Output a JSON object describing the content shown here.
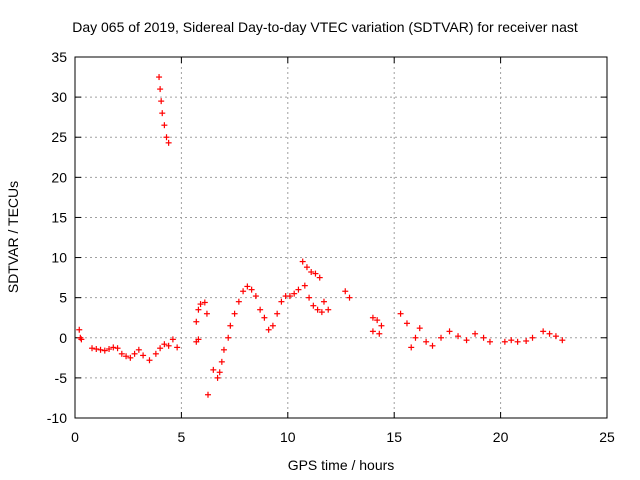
{
  "chart_data": {
    "type": "scatter",
    "title": "Day 065 of 2019, Sidereal Day-to-day VTEC variation (SDTVAR) for receiver nast",
    "xlabel": "GPS time / hours",
    "ylabel": "SDTVAR / TECUs",
    "xlim": [
      0,
      25
    ],
    "ylim": [
      -10,
      35
    ],
    "xticks": [
      0,
      5,
      10,
      15,
      20,
      25
    ],
    "yticks": [
      -10,
      -5,
      0,
      5,
      10,
      15,
      20,
      25,
      30,
      35
    ],
    "grid": true,
    "marker": "plus",
    "color": "#ff0000",
    "series": [
      {
        "name": "SDTVAR",
        "points": [
          [
            0.2,
            1.0
          ],
          [
            0.25,
            0.0
          ],
          [
            0.3,
            -0.2
          ],
          [
            0.8,
            -1.3
          ],
          [
            1.0,
            -1.4
          ],
          [
            1.2,
            -1.5
          ],
          [
            1.4,
            -1.6
          ],
          [
            1.6,
            -1.4
          ],
          [
            1.8,
            -1.2
          ],
          [
            2.0,
            -1.3
          ],
          [
            2.2,
            -2.0
          ],
          [
            2.4,
            -2.3
          ],
          [
            2.6,
            -2.5
          ],
          [
            2.8,
            -2.0
          ],
          [
            3.0,
            -1.5
          ],
          [
            3.2,
            -2.2
          ],
          [
            3.5,
            -2.8
          ],
          [
            3.8,
            -2.0
          ],
          [
            4.0,
            -1.3
          ],
          [
            4.2,
            -0.8
          ],
          [
            4.4,
            -1.0
          ],
          [
            4.6,
            -0.2
          ],
          [
            4.8,
            -1.2
          ],
          [
            3.95,
            32.5
          ],
          [
            4.0,
            31.0
          ],
          [
            4.05,
            29.5
          ],
          [
            4.1,
            28.0
          ],
          [
            4.2,
            26.5
          ],
          [
            4.3,
            25.0
          ],
          [
            4.4,
            24.3
          ],
          [
            5.7,
            2.0
          ],
          [
            5.8,
            3.5
          ],
          [
            5.9,
            4.2
          ],
          [
            6.1,
            4.4
          ],
          [
            6.2,
            3.0
          ],
          [
            5.7,
            -0.5
          ],
          [
            5.8,
            -0.2
          ],
          [
            6.25,
            -7.1
          ],
          [
            6.5,
            -4.0
          ],
          [
            6.7,
            -5.0
          ],
          [
            6.8,
            -4.3
          ],
          [
            6.9,
            -3.0
          ],
          [
            7.0,
            -1.5
          ],
          [
            7.2,
            0.0
          ],
          [
            7.3,
            1.5
          ],
          [
            7.5,
            3.0
          ],
          [
            7.7,
            4.5
          ],
          [
            7.9,
            5.8
          ],
          [
            8.1,
            6.4
          ],
          [
            8.3,
            6.0
          ],
          [
            8.5,
            5.2
          ],
          [
            8.7,
            3.5
          ],
          [
            8.9,
            2.5
          ],
          [
            9.1,
            1.0
          ],
          [
            9.3,
            1.5
          ],
          [
            9.5,
            3.0
          ],
          [
            9.7,
            4.5
          ],
          [
            9.9,
            5.2
          ],
          [
            10.1,
            5.2
          ],
          [
            10.3,
            5.5
          ],
          [
            10.5,
            6.0
          ],
          [
            10.7,
            9.5
          ],
          [
            10.9,
            8.8
          ],
          [
            11.1,
            8.2
          ],
          [
            11.3,
            8.0
          ],
          [
            11.5,
            7.5
          ],
          [
            10.8,
            6.5
          ],
          [
            11.0,
            5.0
          ],
          [
            11.2,
            4.0
          ],
          [
            11.4,
            3.5
          ],
          [
            11.6,
            3.2
          ],
          [
            11.7,
            4.5
          ],
          [
            11.9,
            3.5
          ],
          [
            12.7,
            5.8
          ],
          [
            12.9,
            5.0
          ],
          [
            14.0,
            2.5
          ],
          [
            14.2,
            2.2
          ],
          [
            14.4,
            1.5
          ],
          [
            14.0,
            0.8
          ],
          [
            14.3,
            0.5
          ],
          [
            15.3,
            3.0
          ],
          [
            15.6,
            1.8
          ],
          [
            15.8,
            -1.2
          ],
          [
            16.0,
            0.0
          ],
          [
            16.2,
            1.2
          ],
          [
            16.5,
            -0.5
          ],
          [
            16.8,
            -1.0
          ],
          [
            17.2,
            0.0
          ],
          [
            17.6,
            0.8
          ],
          [
            18.0,
            0.2
          ],
          [
            18.4,
            -0.3
          ],
          [
            18.8,
            0.5
          ],
          [
            19.2,
            0.0
          ],
          [
            19.5,
            -0.5
          ],
          [
            20.2,
            -0.5
          ],
          [
            20.5,
            -0.3
          ],
          [
            20.8,
            -0.5
          ],
          [
            21.2,
            -0.4
          ],
          [
            21.5,
            0.0
          ],
          [
            22.0,
            0.8
          ],
          [
            22.3,
            0.5
          ],
          [
            22.6,
            0.2
          ],
          [
            22.9,
            -0.3
          ]
        ]
      }
    ]
  }
}
